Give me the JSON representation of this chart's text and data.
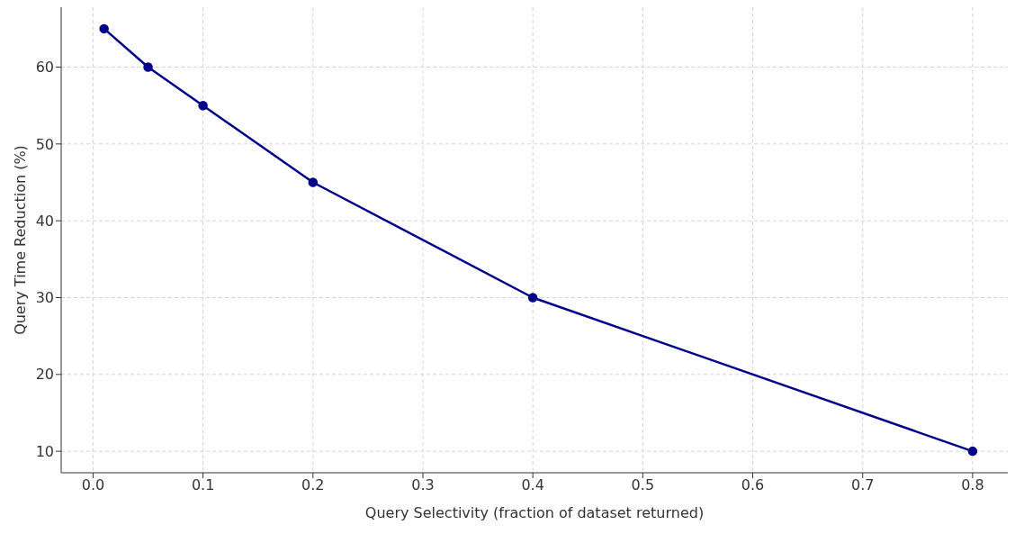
{
  "chart_data": {
    "type": "line",
    "xlabel": "Query Selectivity (fraction of dataset returned)",
    "ylabel": "Query Time Reduction (%)",
    "x": [
      0.01,
      0.05,
      0.1,
      0.2,
      0.4,
      0.8
    ],
    "series": [
      {
        "color": "#00008b",
        "values": [
          65,
          60,
          55,
          45,
          30,
          10
        ]
      }
    ],
    "xlim": [
      -0.029,
      0.832
    ],
    "xticks": [
      {
        "value": 0,
        "label": "0.0"
      },
      0.1,
      0.2,
      0.3,
      0.4,
      0.5,
      0.6,
      0.7,
      0.8
    ],
    "ylim": [
      7.2,
      67.8
    ],
    "yticks": [
      10,
      20,
      30,
      40,
      50,
      60
    ],
    "grid": true,
    "marker": "circle",
    "line_style": "solid",
    "legend": false
  }
}
